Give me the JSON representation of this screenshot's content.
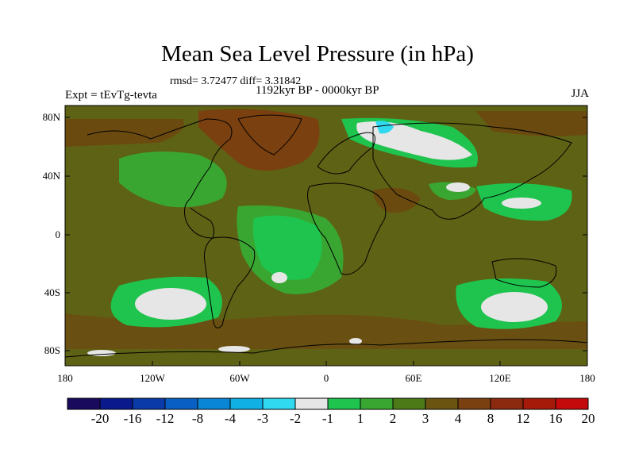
{
  "figure": {
    "title": "Mean Sea Level Pressure (in hPa)",
    "stats": "rmsd= 3.72477  diff= 3.31842",
    "left_label": "Expt = tEvTg-tevta",
    "center_label": "1192kyr BP - 0000kyr BP",
    "right_label": "JJA"
  },
  "axes": {
    "lat_ticks": [
      "80N",
      "40N",
      "0",
      "40S",
      "80S"
    ],
    "lon_ticks": [
      "180",
      "120W",
      "60W",
      "0",
      "60E",
      "120E",
      "180"
    ]
  },
  "colorbar": {
    "colors": [
      "#1a0a5e",
      "#0a1a8c",
      "#0a3aa8",
      "#0a5fc4",
      "#0a86d6",
      "#10b0e4",
      "#30d8f0",
      "#e6e6e6",
      "#1fc44e",
      "#3aa632",
      "#4c7a16",
      "#6b5410",
      "#7a4010",
      "#8c2a10",
      "#a61a0a",
      "#c40a0a"
    ],
    "labels": [
      "-20",
      "-16",
      "-12",
      "-8",
      "-4",
      "-3",
      "-2",
      "-1",
      "1",
      "2",
      "3",
      "4",
      "8",
      "12",
      "16",
      "20"
    ]
  },
  "palette": {
    "background_field": "#5e6214",
    "positive_high": "#7a4010",
    "positive_mid": "#4c7a16",
    "positive_low": "#3aa632",
    "green_bright": "#1fc44e",
    "near_zero": "#e6e6e6",
    "negative_small": "#30d8f0"
  }
}
